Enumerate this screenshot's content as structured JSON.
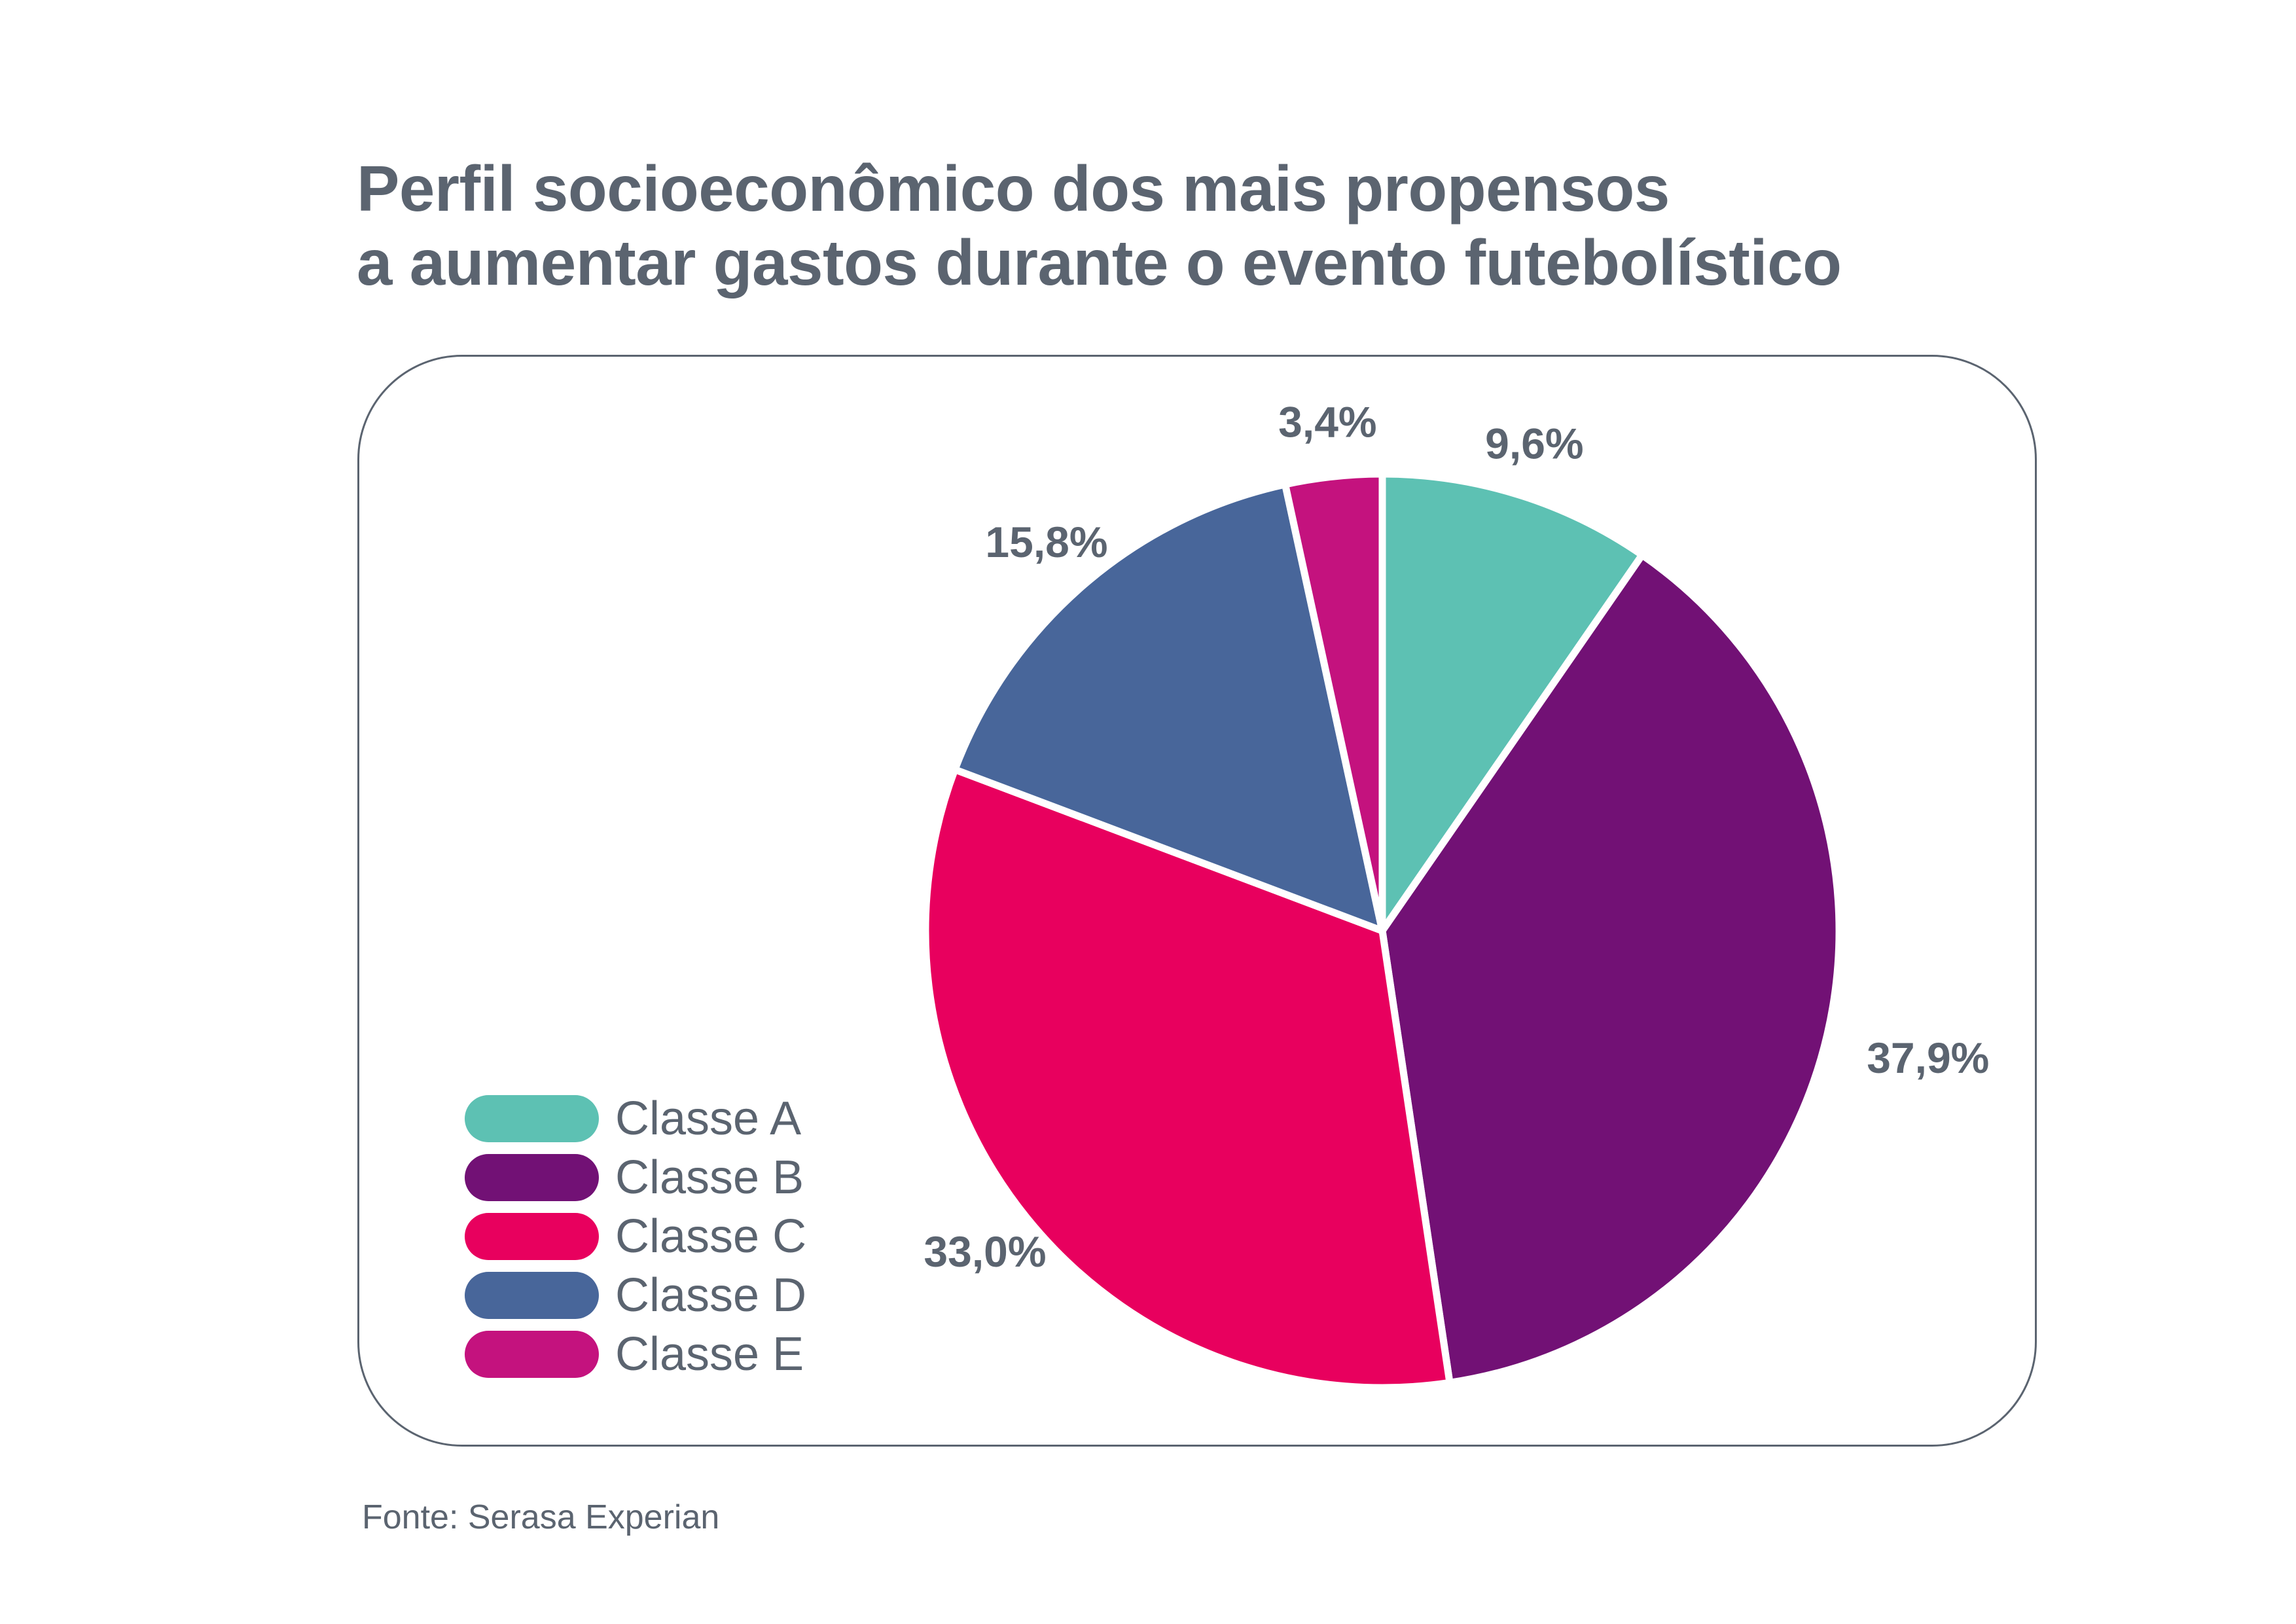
{
  "title_lines": [
    "Perfil socioeconômico dos mais propensos",
    "a aumentar gastos durante o evento futebolístico"
  ],
  "source": "Fonte: Serasa Experian",
  "chart_data": {
    "type": "pie",
    "title": "Perfil socioeconômico dos mais propensos a aumentar gastos durante o evento futebolístico",
    "categories": [
      "Classe A",
      "Classe B",
      "Classe C",
      "Classe D",
      "Classe E"
    ],
    "values": [
      9.6,
      37.9,
      33.0,
      15.8,
      3.4
    ],
    "value_labels": [
      "9,6%",
      "37,9%",
      "33,0%",
      "15,8%",
      "3,4%"
    ],
    "colors": [
      "#5dc1b3",
      "#721175",
      "#e8005e",
      "#48669a",
      "#c4127e"
    ],
    "start": "12 o'clock",
    "direction": "clockwise",
    "legend_position": "bottom-left"
  }
}
